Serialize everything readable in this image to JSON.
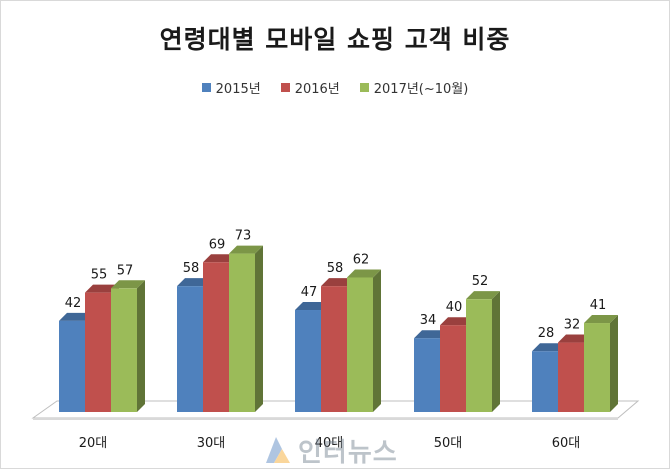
{
  "chart_data": {
    "type": "bar",
    "title": "연령대별 모바일 쇼핑 고객 비중",
    "categories": [
      "20대",
      "30대",
      "40대",
      "50대",
      "60대"
    ],
    "series": [
      {
        "name": "2015년",
        "color": "#4f81bd",
        "values": [
          42,
          58,
          47,
          34,
          28
        ]
      },
      {
        "name": "2016년",
        "color": "#c0504d",
        "values": [
          55,
          69,
          58,
          40,
          32
        ]
      },
      {
        "name": "2017년(~10월)",
        "color": "#9bbb59",
        "values": [
          57,
          73,
          62,
          52,
          41
        ]
      }
    ],
    "ylim": [
      0,
      80
    ],
    "legend_position": "top",
    "grid": false
  },
  "watermark": {
    "text": "인터뉴스"
  }
}
